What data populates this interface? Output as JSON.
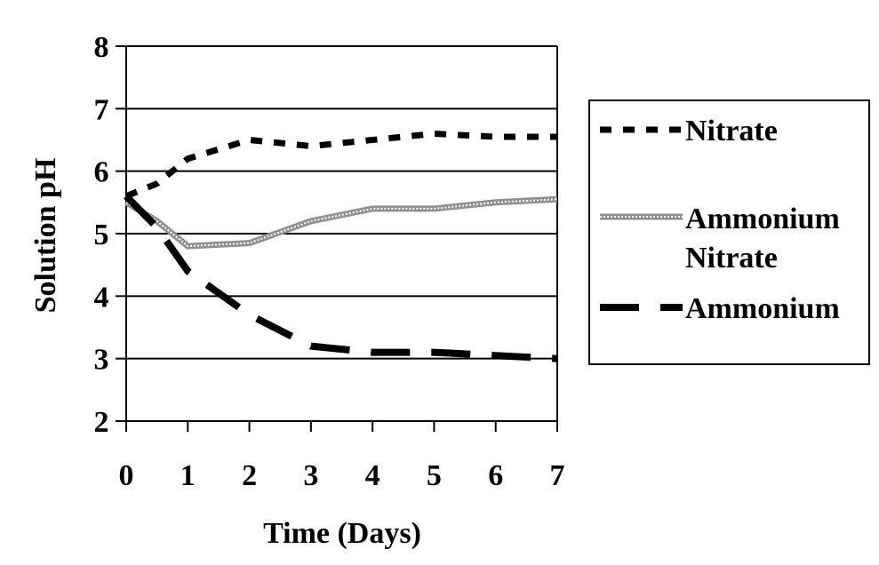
{
  "chart_data": {
    "type": "line",
    "title": "",
    "xlabel": "Time (Days)",
    "ylabel": "Solution pH",
    "xlim": [
      0,
      7
    ],
    "ylim": [
      2,
      8
    ],
    "x_ticks": [
      "0",
      "1",
      "2",
      "3",
      "4",
      "5",
      "6",
      "7"
    ],
    "y_ticks": [
      "2",
      "3",
      "4",
      "5",
      "6",
      "7",
      "8"
    ],
    "grid": "horizontal",
    "legend_position": "right",
    "series": [
      {
        "name": "Nitrate",
        "style": "short-dash",
        "x": [
          0,
          0.5,
          1,
          2,
          3,
          4,
          5,
          6,
          7
        ],
        "y": [
          5.6,
          5.8,
          6.2,
          6.5,
          6.4,
          6.5,
          6.6,
          6.55,
          6.55
        ]
      },
      {
        "name": "Ammonium Nitrate",
        "legend_lines": [
          "Ammonium",
          "Nitrate"
        ],
        "style": "hatched",
        "x": [
          0,
          0.5,
          1,
          2,
          3,
          4,
          5,
          6,
          7
        ],
        "y": [
          5.5,
          5.2,
          4.8,
          4.85,
          5.2,
          5.4,
          5.4,
          5.5,
          5.55
        ],
        "line_color": "#909090"
      },
      {
        "name": "Ammonium",
        "style": "long-dash",
        "x": [
          0,
          0.5,
          1,
          2,
          3,
          4,
          5,
          6,
          7
        ],
        "y": [
          5.6,
          5.1,
          4.4,
          3.7,
          3.2,
          3.1,
          3.1,
          3.05,
          3.0
        ]
      }
    ]
  }
}
